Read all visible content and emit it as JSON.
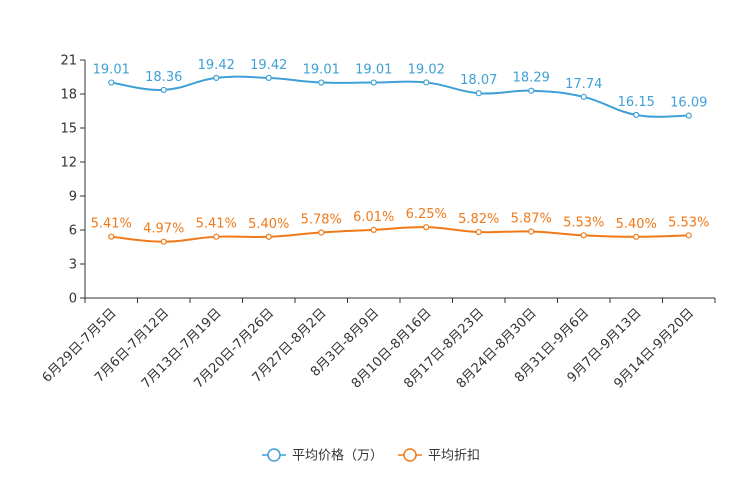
{
  "chart_data": {
    "type": "line",
    "title": "",
    "xlabel": "",
    "ylabel": "",
    "ylim": [
      0,
      21
    ],
    "yticks": [
      0,
      3,
      6,
      9,
      12,
      15,
      18,
      21
    ],
    "categories": [
      "6月29日-7月5日",
      "7月6日-7月12日",
      "7月13日-7月19日",
      "7月20日-7月26日",
      "7月27日-8月2日",
      "8月3日-8月9日",
      "8月10日-8月16日",
      "8月17日-8月23日",
      "8月24日-8月30日",
      "8月31日-9月6日",
      "9月7日-9月13日",
      "9月14日-9月20日"
    ],
    "series": [
      {
        "name": "平均价格（万）",
        "color": "#3fa0d6",
        "values": [
          19.01,
          18.36,
          19.42,
          19.42,
          19.01,
          19.01,
          19.02,
          18.07,
          18.29,
          17.74,
          16.15,
          16.09
        ],
        "labels": [
          "19.01",
          "18.36",
          "19.42",
          "19.42",
          "19.01",
          "19.01",
          "19.02",
          "18.07",
          "18.29",
          "17.74",
          "16.15",
          "16.09"
        ]
      },
      {
        "name": "平均折扣",
        "color": "#f07a1a",
        "values": [
          5.41,
          4.97,
          5.41,
          5.4,
          5.78,
          6.01,
          6.25,
          5.82,
          5.87,
          5.53,
          5.4,
          5.53
        ],
        "labels": [
          "5.41%",
          "4.97%",
          "5.41%",
          "5.40%",
          "5.78%",
          "6.01%",
          "6.25%",
          "5.82%",
          "5.87%",
          "5.53%",
          "5.40%",
          "5.53%"
        ]
      }
    ],
    "legend_position": "bottom-center",
    "grid": false
  }
}
